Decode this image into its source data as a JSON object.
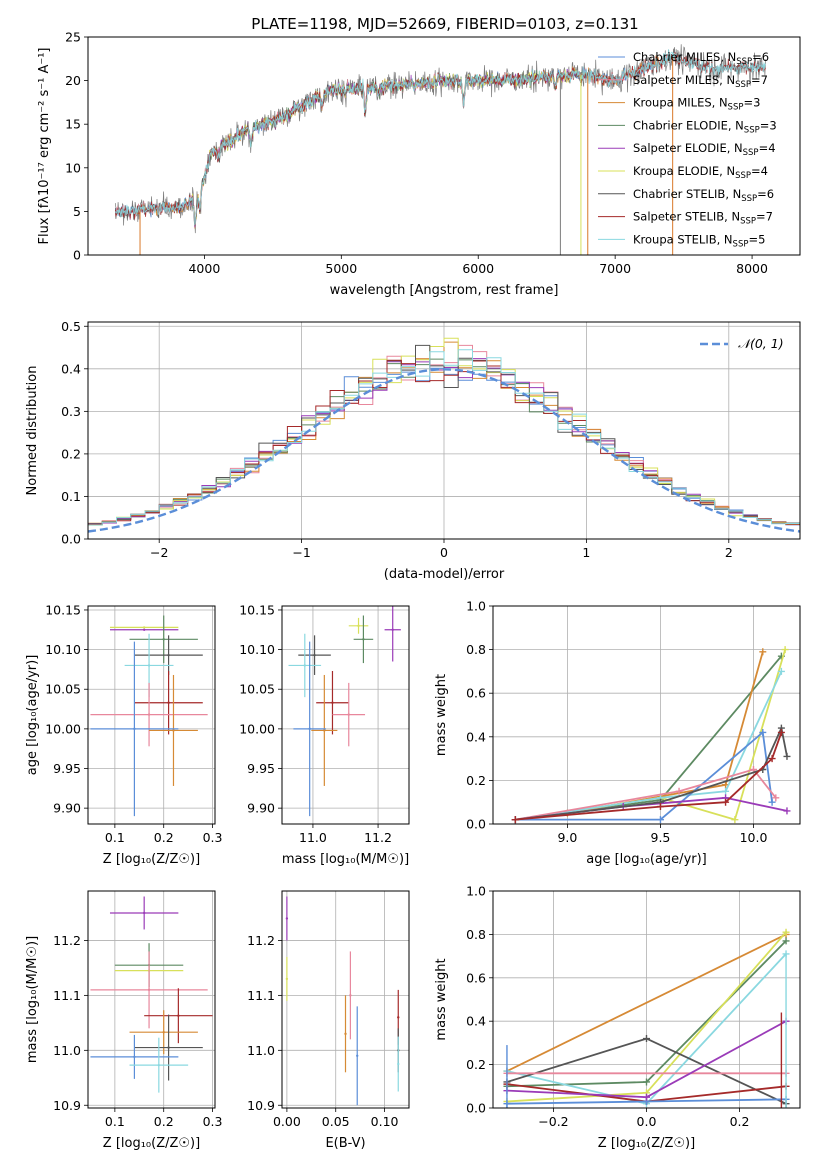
{
  "figure": {
    "title": "PLATE=1198, MJD=52669, FIBERID=0103, z=0.131"
  },
  "colors": {
    "chabrier_miles": "#5b8ed8",
    "salpeter_miles": "#e8879c",
    "kroupa_miles": "#d68a35",
    "chabrier_elodie": "#5d8a62",
    "salpeter_elodie": "#9a3bb8",
    "kroupa_elodie": "#d8e05a",
    "chabrier_stelib": "#555555",
    "salpeter_stelib": "#a52a2a",
    "kroupa_stelib": "#8ad8e0",
    "orange": "#d9782a",
    "data_gray": "#7a7a7a",
    "grid": "#b0b0b0",
    "normal_curve": "#5b8ed8"
  },
  "chart_data": [
    {
      "id": "spectrum",
      "type": "line",
      "title": "PLATE=1198, MJD=52669, FIBERID=0103, z=0.131",
      "xlabel": "wavelength [Angstrom, rest frame]",
      "ylabel": "Flux [f$_{\\lambda}$10$^{-17}$ erg cm$^{-2}$ s$^{-1}$ A$^{-1}$]",
      "ylabel_display": "Flux [fλ10⁻¹⁷ erg cm⁻² s⁻¹ A⁻¹]",
      "xlim": [
        3150,
        8350
      ],
      "ylim": [
        0,
        25
      ],
      "xticks": [
        4000,
        5000,
        6000,
        7000,
        8000
      ],
      "yticks": [
        0,
        5,
        10,
        15,
        20,
        25
      ],
      "grid": false,
      "legend_position": "upper right",
      "legend": [
        {
          "label": "Chabrier MILES, N",
          "sub": "SSP",
          "suffix": "=6",
          "color": "chabrier_miles"
        },
        {
          "label": "Salpeter MILES, N",
          "sub": "SSP",
          "suffix": "=7",
          "color": "salpeter_miles"
        },
        {
          "label": "Kroupa MILES, N",
          "sub": "SSP",
          "suffix": "=3",
          "color": "kroupa_miles"
        },
        {
          "label": "Chabrier ELODIE, N",
          "sub": "SSP",
          "suffix": "=3",
          "color": "chabrier_elodie"
        },
        {
          "label": "Salpeter ELODIE, N",
          "sub": "SSP",
          "suffix": "=4",
          "color": "salpeter_elodie"
        },
        {
          "label": "Kroupa ELODIE, N",
          "sub": "SSP",
          "suffix": "=4",
          "color": "kroupa_elodie"
        },
        {
          "label": "Chabrier STELIB, N",
          "sub": "SSP",
          "suffix": "=6",
          "color": "chabrier_stelib"
        },
        {
          "label": "Salpeter STELIB, N",
          "sub": "SSP",
          "suffix": "=7",
          "color": "salpeter_stelib"
        },
        {
          "label": "Kroupa STELIB, N",
          "sub": "SSP",
          "suffix": "=5",
          "color": "kroupa_stelib"
        }
      ],
      "continuum_knots": {
        "x": [
          3350,
          3500,
          3700,
          3850,
          3950,
          4050,
          4300,
          4600,
          4900,
          5200,
          5500,
          5900,
          6300,
          6700,
          7000,
          7300,
          7400,
          7700,
          8000,
          8100
        ],
        "y": [
          4.9,
          5.2,
          5.3,
          5.7,
          6.5,
          11.7,
          14.3,
          16.0,
          18.9,
          19.3,
          19.6,
          20.0,
          20.1,
          20.8,
          20.0,
          22.0,
          22.8,
          21.4,
          21.5,
          21.5
        ]
      },
      "model_ranges": {
        "chabrier_miles": [
          3350,
          7400
        ],
        "salpeter_miles": [
          3350,
          7400
        ],
        "kroupa_miles": [
          3500,
          7420
        ],
        "chabrier_elodie": [
          3900,
          6800
        ],
        "salpeter_elodie": [
          3900,
          6800
        ],
        "kroupa_elodie": [
          3900,
          6800
        ],
        "chabrier_stelib": [
          3350,
          8100
        ],
        "salpeter_stelib": [
          3350,
          8100
        ],
        "kroupa_stelib": [
          3350,
          8100
        ]
      },
      "absorption_features": [
        {
          "x": 3933,
          "depth": 2.5
        },
        {
          "x": 3968,
          "depth": 2.0
        },
        {
          "x": 4102,
          "depth": 1.2
        },
        {
          "x": 4340,
          "depth": 1.8
        },
        {
          "x": 4861,
          "depth": 1.5
        },
        {
          "x": 5175,
          "depth": 3.0
        },
        {
          "x": 5270,
          "depth": 1.0
        },
        {
          "x": 5893,
          "depth": 2.5
        },
        {
          "x": 6563,
          "depth": 1.5
        }
      ],
      "edge_drops": [
        {
          "x": 3530,
          "color": "orange"
        },
        {
          "x": 6600,
          "color": "data_gray"
        },
        {
          "x": 6750,
          "color": "kroupa_elodie"
        },
        {
          "x": 6800,
          "color": "orange"
        },
        {
          "x": 7420,
          "color": "orange"
        }
      ]
    },
    {
      "id": "histogram",
      "type": "bar",
      "xlabel": "(data-model)/error",
      "ylabel": "Normed distribution",
      "xlim": [
        -2.5,
        2.5
      ],
      "ylim": [
        0,
        0.51
      ],
      "xticks": [
        -2,
        -1,
        0,
        1,
        2
      ],
      "yticks": [
        0.0,
        0.1,
        0.2,
        0.3,
        0.4,
        0.5
      ],
      "grid": true,
      "legend_position": "upper right",
      "legend": [
        {
          "label": "𝒩(0, 1)",
          "style": "dashed",
          "color": "normal_curve"
        }
      ],
      "bin_width": 0.1,
      "sigma": 1.0
    },
    {
      "id": "age_vs_Z",
      "type": "scatter",
      "xlabel": "Z [log₁₀(Z/Z☉)]",
      "ylabel": "age  [log₁₀(age/yr)]",
      "xlim": [
        0.045,
        0.305
      ],
      "ylim": [
        9.88,
        10.155
      ],
      "xticks": [
        0.1,
        0.2,
        0.3
      ],
      "yticks": [
        9.9,
        9.95,
        10.0,
        10.05,
        10.1,
        10.15
      ],
      "grid": true,
      "points": [
        {
          "color": "kroupa_elodie",
          "x": 0.16,
          "xerr": 0.07,
          "y": 10.128,
          "yerr": 0.0
        },
        {
          "color": "salpeter_elodie",
          "x": 0.16,
          "xerr": 0.07,
          "y": 10.125,
          "yerr": 0.0
        },
        {
          "color": "chabrier_elodie",
          "x": 0.2,
          "xerr": 0.07,
          "y": 10.113,
          "yerr": 0.03
        },
        {
          "color": "chabrier_stelib",
          "x": 0.21,
          "xerr": 0.07,
          "y": 10.093,
          "yerr": 0.025
        },
        {
          "color": "kroupa_stelib",
          "x": 0.17,
          "xerr": 0.05,
          "y": 10.08,
          "yerr": 0.04
        },
        {
          "color": "salpeter_stelib",
          "x": 0.21,
          "xerr": 0.07,
          "y": 10.033,
          "yerr": 0.04
        },
        {
          "color": "salpeter_miles",
          "x": 0.17,
          "xerr": 0.12,
          "y": 10.018,
          "yerr": 0.04
        },
        {
          "color": "kroupa_miles",
          "x": 0.22,
          "xerr": 0.05,
          "y": 9.998,
          "yerr": 0.07
        },
        {
          "color": "chabrier_miles",
          "x": 0.14,
          "xerr": 0.09,
          "y": 10.0,
          "yerr": 0.11
        }
      ]
    },
    {
      "id": "age_vs_mass",
      "type": "scatter",
      "xlabel": "mass [log₁₀(M/M☉)]",
      "ylabel": "",
      "xlim": [
        10.905,
        11.295
      ],
      "ylim": [
        9.88,
        10.155
      ],
      "xticks": [
        11.0,
        11.2
      ],
      "yticks": [
        9.9,
        9.95,
        10.0,
        10.05,
        10.1,
        10.15
      ],
      "grid": true,
      "points": [
        {
          "color": "salpeter_elodie",
          "x": 11.245,
          "xerr": 0.025,
          "y": 10.125,
          "yerr": 0.04
        },
        {
          "color": "kroupa_elodie",
          "x": 11.14,
          "xerr": 0.03,
          "y": 10.13,
          "yerr": 0.01
        },
        {
          "color": "chabrier_elodie",
          "x": 11.155,
          "xerr": 0.03,
          "y": 10.113,
          "yerr": 0.03
        },
        {
          "color": "chabrier_stelib",
          "x": 11.005,
          "xerr": 0.05,
          "y": 10.093,
          "yerr": 0.025
        },
        {
          "color": "kroupa_stelib",
          "x": 10.975,
          "xerr": 0.05,
          "y": 10.08,
          "yerr": 0.04
        },
        {
          "color": "salpeter_stelib",
          "x": 11.06,
          "xerr": 0.05,
          "y": 10.033,
          "yerr": 0.04
        },
        {
          "color": "salpeter_miles",
          "x": 11.11,
          "xerr": 0.05,
          "y": 10.018,
          "yerr": 0.04
        },
        {
          "color": "kroupa_miles",
          "x": 11.035,
          "xerr": 0.04,
          "y": 9.998,
          "yerr": 0.07
        },
        {
          "color": "chabrier_miles",
          "x": 10.99,
          "xerr": 0.05,
          "y": 10.0,
          "yerr": 0.11
        }
      ]
    },
    {
      "id": "mass_weight_vs_age",
      "type": "line",
      "xlabel": "age  [log₁₀(age/yr)]",
      "ylabel": "mass weight",
      "xlim": [
        8.6,
        10.25
      ],
      "ylim": [
        0,
        1.0
      ],
      "xticks": [
        9.0,
        9.5,
        10.0
      ],
      "yticks": [
        0.0,
        0.2,
        0.4,
        0.6,
        0.8,
        1.0
      ],
      "grid": true,
      "series": [
        {
          "color": "chabrier_elodie",
          "x": [
            8.72,
            9.5,
            10.15
          ],
          "y": [
            0.02,
            0.11,
            0.77
          ]
        },
        {
          "color": "kroupa_miles",
          "x": [
            8.72,
            9.0,
            9.85,
            10.05
          ],
          "y": [
            0.02,
            0.05,
            0.18,
            0.79
          ]
        },
        {
          "color": "kroupa_elodie",
          "x": [
            8.72,
            9.5,
            9.9,
            10.17
          ],
          "y": [
            0.02,
            0.12,
            0.02,
            0.8
          ]
        },
        {
          "color": "kroupa_stelib",
          "x": [
            8.72,
            9.5,
            9.85,
            10.15
          ],
          "y": [
            0.02,
            0.12,
            0.15,
            0.7
          ]
        },
        {
          "color": "chabrier_miles",
          "x": [
            8.72,
            9.5,
            10.05,
            10.1
          ],
          "y": [
            0.02,
            0.02,
            0.42,
            0.1
          ]
        },
        {
          "color": "salpeter_miles",
          "x": [
            8.72,
            9.6,
            10.0,
            10.12
          ],
          "y": [
            0.02,
            0.15,
            0.25,
            0.12
          ]
        },
        {
          "color": "salpeter_elodie",
          "x": [
            8.72,
            9.3,
            9.85,
            10.18
          ],
          "y": [
            0.02,
            0.08,
            0.12,
            0.06
          ]
        },
        {
          "color": "chabrier_stelib",
          "x": [
            8.72,
            9.5,
            10.05,
            10.15,
            10.18
          ],
          "y": [
            0.02,
            0.1,
            0.25,
            0.44,
            0.31
          ]
        },
        {
          "color": "salpeter_stelib",
          "x": [
            8.72,
            9.5,
            9.85,
            10.1,
            10.15
          ],
          "y": [
            0.02,
            0.08,
            0.1,
            0.3,
            0.42
          ]
        }
      ]
    },
    {
      "id": "mass_vs_Z",
      "type": "scatter",
      "xlabel": "Z [log₁₀(Z/Z☉)]",
      "ylabel": "mass [log₁₀(M/M☉)]",
      "xlim": [
        0.045,
        0.305
      ],
      "ylim": [
        10.895,
        11.29
      ],
      "xticks": [
        0.1,
        0.2,
        0.3
      ],
      "yticks": [
        10.9,
        11.0,
        11.1,
        11.2
      ],
      "grid": true,
      "points": [
        {
          "color": "salpeter_elodie",
          "x": 0.16,
          "xerr": 0.07,
          "y": 11.25,
          "yerr": 0.03
        },
        {
          "color": "chabrier_elodie",
          "x": 0.17,
          "xerr": 0.07,
          "y": 11.155,
          "yerr": 0.04
        },
        {
          "color": "kroupa_elodie",
          "x": 0.17,
          "xerr": 0.07,
          "y": 11.145,
          "yerr": 0.0
        },
        {
          "color": "salpeter_miles",
          "x": 0.17,
          "xerr": 0.12,
          "y": 11.11,
          "yerr": 0.07
        },
        {
          "color": "salpeter_stelib",
          "x": 0.23,
          "xerr": 0.07,
          "y": 11.063,
          "yerr": 0.05
        },
        {
          "color": "kroupa_miles",
          "x": 0.2,
          "xerr": 0.07,
          "y": 11.033,
          "yerr": 0.04
        },
        {
          "color": "chabrier_stelib",
          "x": 0.21,
          "xerr": 0.07,
          "y": 11.005,
          "yerr": 0.06
        },
        {
          "color": "chabrier_miles",
          "x": 0.14,
          "xerr": 0.09,
          "y": 10.988,
          "yerr": 0.04
        },
        {
          "color": "kroupa_stelib",
          "x": 0.19,
          "xerr": 0.06,
          "y": 10.973,
          "yerr": 0.05
        }
      ]
    },
    {
      "id": "mass_vs_ebv",
      "type": "scatter",
      "xlabel": "E(B-V)",
      "ylabel": "",
      "xlim": [
        -0.005,
        0.125
      ],
      "ylim": [
        10.895,
        11.29
      ],
      "xticks": [
        0.0,
        0.05,
        0.1
      ],
      "yticks": [
        10.9,
        11.0,
        11.1,
        11.2
      ],
      "grid": true,
      "points": [
        {
          "color": "salpeter_elodie",
          "x": 0.0,
          "xerr": 0.0,
          "y": 11.24,
          "yerr": 0.04
        },
        {
          "color": "kroupa_elodie",
          "x": 0.0,
          "xerr": 0.0,
          "y": 11.13,
          "yerr": 0.04
        },
        {
          "color": "salpeter_miles",
          "x": 0.065,
          "xerr": 0.0,
          "y": 11.1,
          "yerr": 0.08
        },
        {
          "color": "kroupa_miles",
          "x": 0.06,
          "xerr": 0.0,
          "y": 11.03,
          "yerr": 0.07
        },
        {
          "color": "chabrier_miles",
          "x": 0.072,
          "xerr": 0.0,
          "y": 10.99,
          "yerr": 0.09
        },
        {
          "color": "salpeter_stelib",
          "x": 0.114,
          "xerr": 0.0,
          "y": 11.06,
          "yerr": 0.05
        },
        {
          "color": "chabrier_stelib",
          "x": 0.114,
          "xerr": 0.0,
          "y": 11.0,
          "yerr": 0.04
        },
        {
          "color": "kroupa_stelib",
          "x": 0.114,
          "xerr": 0.0,
          "y": 10.975,
          "yerr": 0.05
        }
      ]
    },
    {
      "id": "mass_weight_vs_Z",
      "type": "line",
      "xlabel": "Z [log₁₀(Z/Z☉)]",
      "ylabel": "mass weight",
      "xlim": [
        -0.33,
        0.33
      ],
      "ylim": [
        0,
        1.0
      ],
      "xticks": [
        -0.2,
        0.0,
        0.2
      ],
      "yticks": [
        0.0,
        0.2,
        0.4,
        0.6,
        0.8,
        1.0
      ],
      "grid": true,
      "series": [
        {
          "color": "kroupa_miles",
          "x": [
            -0.3,
            0.3
          ],
          "y": [
            0.17,
            0.8
          ]
        },
        {
          "color": "chabrier_elodie",
          "x": [
            -0.3,
            0.0,
            0.3
          ],
          "y": [
            0.1,
            0.12,
            0.77
          ]
        },
        {
          "color": "kroupa_elodie",
          "x": [
            -0.3,
            0.0,
            0.3
          ],
          "y": [
            0.03,
            0.07,
            0.81
          ]
        },
        {
          "color": "kroupa_stelib",
          "x": [
            -0.3,
            0.0,
            0.3
          ],
          "y": [
            0.17,
            0.02,
            0.71
          ]
        },
        {
          "color": "chabrier_stelib",
          "x": [
            -0.3,
            0.0,
            0.3
          ],
          "y": [
            0.12,
            0.32,
            0.02
          ]
        },
        {
          "color": "salpeter_miles",
          "x": [
            -0.3,
            0.3
          ],
          "y": [
            0.16,
            0.16
          ]
        },
        {
          "color": "salpeter_stelib",
          "x": [
            -0.3,
            0.0,
            0.3
          ],
          "y": [
            0.11,
            0.03,
            0.1
          ]
        },
        {
          "color": "chabrier_miles",
          "x": [
            -0.3,
            0.0,
            0.3
          ],
          "y": [
            0.02,
            0.03,
            0.04
          ]
        },
        {
          "color": "salpeter_elodie",
          "x": [
            -0.3,
            0.0,
            0.3
          ],
          "y": [
            0.08,
            0.05,
            0.4
          ]
        }
      ],
      "verticals": [
        {
          "x": -0.3,
          "ymin": 0.0,
          "ymax": 0.29,
          "color": "chabrier_miles"
        },
        {
          "x": 0.29,
          "ymin": 0.0,
          "ymax": 0.44,
          "color": "salpeter_stelib"
        },
        {
          "x": 0.3,
          "ymin": 0.0,
          "ymax": 0.71,
          "color": "kroupa_stelib"
        }
      ]
    }
  ]
}
